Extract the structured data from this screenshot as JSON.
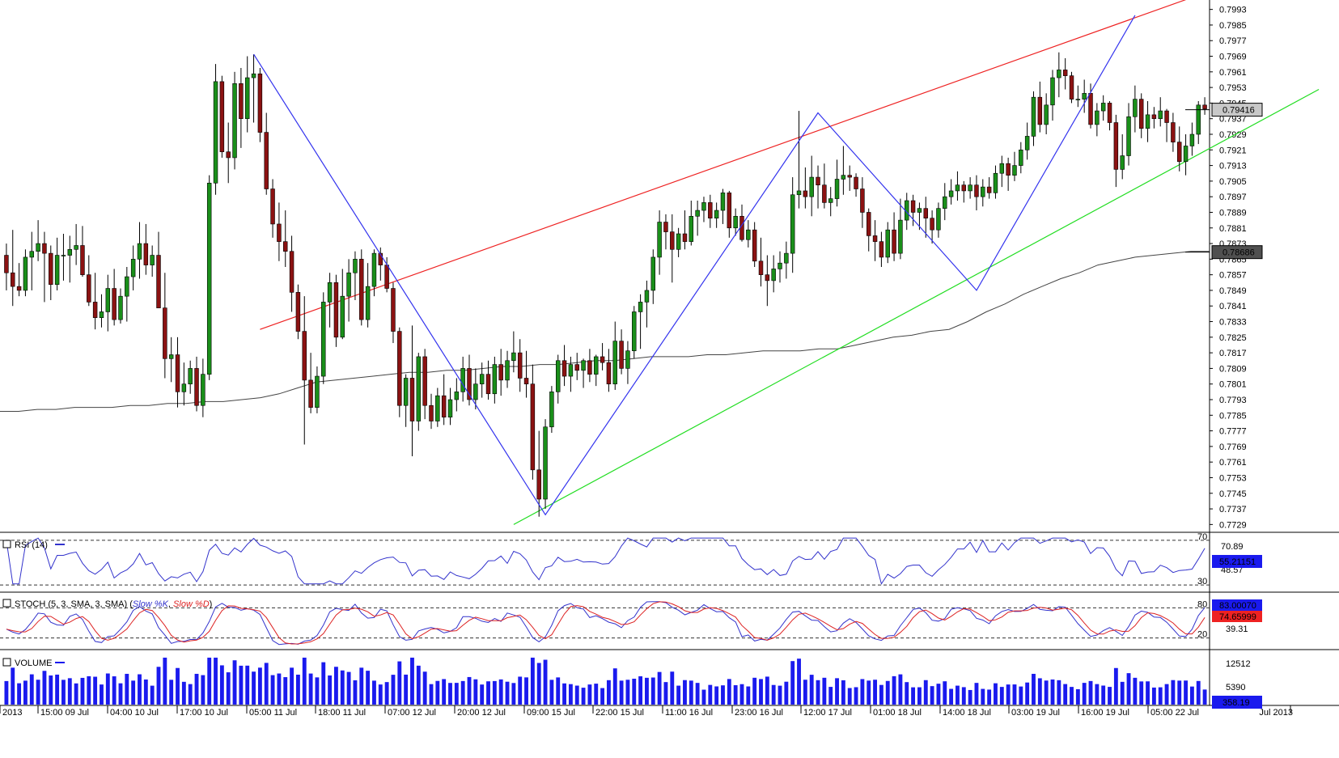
{
  "chart_data": {
    "type": "candlestick",
    "price_axis": {
      "min": 0.7725,
      "max": 0.7997,
      "ticks": [
        "0.7993",
        "0.7985",
        "0.7977",
        "0.7969",
        "0.7961",
        "0.7953",
        "0.7945",
        "0.7937",
        "0.7929",
        "0.7921",
        "0.7913",
        "0.7905",
        "0.7897",
        "0.7889",
        "0.7881",
        "0.7873",
        "0.7865",
        "0.7857",
        "0.7849",
        "0.7841",
        "0.7833",
        "0.7825",
        "0.7817",
        "0.7809",
        "0.7801",
        "0.7793",
        "0.7785",
        "0.7777",
        "0.7769",
        "0.7761",
        "0.7753",
        "0.7745",
        "0.7737",
        "0.7729"
      ],
      "last_price": "0.79416",
      "ma_value": "0.78686"
    },
    "x_labels": [
      "2013",
      "15:00 09 Jul",
      "04:00 10 Jul",
      "17:00 10 Jul",
      "05:00 11 Jul",
      "18:00 11 Jul",
      "07:00 12 Jul",
      "20:00 12 Jul",
      "09:00 15 Jul",
      "22:00 15 Jul",
      "11:00 16 Jul",
      "23:00 16 Jul",
      "12:00 17 Jul",
      "01:00 18 Jul",
      "14:00 18 Jul",
      "03:00 19 Jul",
      "16:00 19 Jul",
      "05:00 22 Jul",
      "Jul 2013"
    ],
    "rsi": {
      "label": "RSI (14)",
      "levels": [
        "70",
        "30"
      ],
      "tick_values": [
        "70.89",
        "48.57"
      ],
      "current": "55.21151"
    },
    "stoch": {
      "label_prefix": "STOCH (5, 3, SMA, 3, SMA)",
      "k_label": "Slow %K",
      "d_label": "Slow %D",
      "levels": [
        "80",
        "20"
      ],
      "tick_values": [
        "39.31"
      ],
      "current_k": "83.00070",
      "current_d": "74.65999"
    },
    "volume": {
      "label": "VOLUME",
      "tick_values": [
        "12512",
        "5390"
      ],
      "current": "358.19"
    },
    "colors": {
      "bull": "#1a8f1a",
      "bear": "#8b1212",
      "ma": "#444444",
      "pattern": "#3333ee",
      "channel_upper": "#ee2222",
      "channel_lower": "#22dd22",
      "rsi": "#3333cc",
      "stoch_k": "#3333cc",
      "stoch_d": "#dd2222",
      "volume": "#1a1aee"
    },
    "ohlc": [
      [
        0.7867,
        0.7873,
        0.7849,
        0.7858
      ],
      [
        0.7858,
        0.788,
        0.7841,
        0.7851
      ],
      [
        0.7851,
        0.7863,
        0.7846,
        0.7849
      ],
      [
        0.7849,
        0.787,
        0.7846,
        0.7866
      ],
      [
        0.7866,
        0.7879,
        0.7849,
        0.7869
      ],
      [
        0.7869,
        0.7885,
        0.7864,
        0.7873
      ],
      [
        0.7873,
        0.7879,
        0.7843,
        0.7868
      ],
      [
        0.7868,
        0.7872,
        0.7844,
        0.7852
      ],
      [
        0.7852,
        0.7876,
        0.7849,
        0.7867
      ],
      [
        0.7867,
        0.7878,
        0.7854,
        0.7867
      ],
      [
        0.7867,
        0.7877,
        0.7853,
        0.787
      ],
      [
        0.787,
        0.7883,
        0.7862,
        0.7872
      ],
      [
        0.7872,
        0.7882,
        0.7856,
        0.7857
      ],
      [
        0.7857,
        0.7867,
        0.7841,
        0.7843
      ],
      [
        0.7843,
        0.7858,
        0.7829,
        0.7835
      ],
      [
        0.7835,
        0.7847,
        0.783,
        0.7838
      ],
      [
        0.7838,
        0.7857,
        0.7828,
        0.785
      ],
      [
        0.785,
        0.786,
        0.7831,
        0.7834
      ],
      [
        0.7834,
        0.785,
        0.7832,
        0.7846
      ],
      [
        0.7846,
        0.7861,
        0.7833,
        0.7856
      ],
      [
        0.7856,
        0.7872,
        0.7849,
        0.7865
      ],
      [
        0.7865,
        0.7884,
        0.7855,
        0.7873
      ],
      [
        0.7873,
        0.7883,
        0.7857,
        0.7862
      ],
      [
        0.7862,
        0.7872,
        0.7856,
        0.7867
      ],
      [
        0.7867,
        0.7879,
        0.7841,
        0.784
      ],
      [
        0.784,
        0.7858,
        0.7804,
        0.7814
      ],
      [
        0.7814,
        0.7825,
        0.7802,
        0.7816
      ],
      [
        0.7816,
        0.7825,
        0.7789,
        0.7797
      ],
      [
        0.7797,
        0.7812,
        0.779,
        0.7801
      ],
      [
        0.7801,
        0.7813,
        0.7796,
        0.7809
      ],
      [
        0.7809,
        0.7815,
        0.7787,
        0.779
      ],
      [
        0.779,
        0.7814,
        0.7784,
        0.7806
      ],
      [
        0.7806,
        0.7908,
        0.7803,
        0.7904
      ],
      [
        0.7904,
        0.7965,
        0.7898,
        0.7956
      ],
      [
        0.7956,
        0.7959,
        0.7917,
        0.792
      ],
      [
        0.792,
        0.7935,
        0.7904,
        0.7917
      ],
      [
        0.7917,
        0.7961,
        0.7911,
        0.7955
      ],
      [
        0.7955,
        0.7963,
        0.7922,
        0.7937
      ],
      [
        0.7937,
        0.7969,
        0.793,
        0.7958
      ],
      [
        0.7958,
        0.797,
        0.7935,
        0.796
      ],
      [
        0.796,
        0.7963,
        0.7925,
        0.793
      ],
      [
        0.793,
        0.794,
        0.7898,
        0.7901
      ],
      [
        0.7901,
        0.7906,
        0.7876,
        0.7883
      ],
      [
        0.7883,
        0.7894,
        0.7864,
        0.7874
      ],
      [
        0.7874,
        0.789,
        0.7861,
        0.7869
      ],
      [
        0.7869,
        0.7877,
        0.7838,
        0.7848
      ],
      [
        0.7848,
        0.7852,
        0.7824,
        0.7828
      ],
      [
        0.7828,
        0.7846,
        0.777,
        0.7803
      ],
      [
        0.7803,
        0.7817,
        0.7786,
        0.7789
      ],
      [
        0.7789,
        0.781,
        0.7786,
        0.7805
      ],
      [
        0.7805,
        0.7848,
        0.7801,
        0.7843
      ],
      [
        0.7843,
        0.7858,
        0.783,
        0.7853
      ],
      [
        0.7853,
        0.7857,
        0.782,
        0.7825
      ],
      [
        0.7825,
        0.786,
        0.7824,
        0.7846
      ],
      [
        0.7846,
        0.7865,
        0.7833,
        0.7858
      ],
      [
        0.7858,
        0.7869,
        0.7844,
        0.7865
      ],
      [
        0.7865,
        0.787,
        0.7831,
        0.7834
      ],
      [
        0.7834,
        0.7863,
        0.783,
        0.7851
      ],
      [
        0.7851,
        0.787,
        0.7846,
        0.7868
      ],
      [
        0.7868,
        0.7871,
        0.7854,
        0.7862
      ],
      [
        0.7862,
        0.7866,
        0.7848,
        0.785
      ],
      [
        0.785,
        0.7853,
        0.7822,
        0.7828
      ],
      [
        0.7828,
        0.783,
        0.7784,
        0.779
      ],
      [
        0.779,
        0.7806,
        0.7779,
        0.7804
      ],
      [
        0.7804,
        0.7831,
        0.7764,
        0.7782
      ],
      [
        0.7782,
        0.7817,
        0.7777,
        0.7815
      ],
      [
        0.7815,
        0.7819,
        0.7783,
        0.779
      ],
      [
        0.779,
        0.7796,
        0.7778,
        0.7782
      ],
      [
        0.7782,
        0.7799,
        0.7779,
        0.7795
      ],
      [
        0.7795,
        0.7806,
        0.778,
        0.7784
      ],
      [
        0.7784,
        0.7799,
        0.778,
        0.7793
      ],
      [
        0.7793,
        0.7804,
        0.7787,
        0.7797
      ],
      [
        0.7797,
        0.7815,
        0.7792,
        0.7809
      ],
      [
        0.7809,
        0.7816,
        0.779,
        0.7793
      ],
      [
        0.7793,
        0.7809,
        0.7788,
        0.7801
      ],
      [
        0.7801,
        0.7812,
        0.7794,
        0.7806
      ],
      [
        0.7806,
        0.7813,
        0.7793,
        0.7796
      ],
      [
        0.7796,
        0.7815,
        0.7791,
        0.7811
      ],
      [
        0.7811,
        0.7819,
        0.7795,
        0.7803
      ],
      [
        0.7803,
        0.7818,
        0.7799,
        0.7813
      ],
      [
        0.7813,
        0.7828,
        0.7807,
        0.7817
      ],
      [
        0.7817,
        0.7824,
        0.7797,
        0.7804
      ],
      [
        0.7804,
        0.7818,
        0.7794,
        0.7801
      ],
      [
        0.7801,
        0.7811,
        0.7752,
        0.7757
      ],
      [
        0.7757,
        0.7777,
        0.7733,
        0.7742
      ],
      [
        0.7742,
        0.7783,
        0.7737,
        0.7779
      ],
      [
        0.7779,
        0.78,
        0.7776,
        0.7797
      ],
      [
        0.7797,
        0.7816,
        0.7791,
        0.7813
      ],
      [
        0.7813,
        0.7821,
        0.78,
        0.7805
      ],
      [
        0.7805,
        0.7815,
        0.7797,
        0.7811
      ],
      [
        0.7811,
        0.7817,
        0.7803,
        0.7808
      ],
      [
        0.7808,
        0.7814,
        0.7799,
        0.7813
      ],
      [
        0.7813,
        0.7819,
        0.7802,
        0.7806
      ],
      [
        0.7806,
        0.7816,
        0.78,
        0.7815
      ],
      [
        0.7815,
        0.7822,
        0.7808,
        0.7812
      ],
      [
        0.7812,
        0.7819,
        0.7797,
        0.7801
      ],
      [
        0.7801,
        0.7833,
        0.7798,
        0.7823
      ],
      [
        0.7823,
        0.7829,
        0.7806,
        0.7809
      ],
      [
        0.7809,
        0.7823,
        0.7801,
        0.7818
      ],
      [
        0.7818,
        0.7841,
        0.7814,
        0.7838
      ],
      [
        0.7838,
        0.7847,
        0.7819,
        0.7843
      ],
      [
        0.7843,
        0.7854,
        0.783,
        0.7849
      ],
      [
        0.7849,
        0.787,
        0.7842,
        0.7866
      ],
      [
        0.7866,
        0.789,
        0.7857,
        0.7884
      ],
      [
        0.7884,
        0.7888,
        0.787,
        0.7879
      ],
      [
        0.7879,
        0.7888,
        0.7853,
        0.787
      ],
      [
        0.787,
        0.7881,
        0.7866,
        0.7878
      ],
      [
        0.7878,
        0.789,
        0.787,
        0.7874
      ],
      [
        0.7874,
        0.7895,
        0.7872,
        0.7887
      ],
      [
        0.7887,
        0.7895,
        0.7877,
        0.789
      ],
      [
        0.789,
        0.7897,
        0.7884,
        0.7894
      ],
      [
        0.7894,
        0.7898,
        0.7881,
        0.7886
      ],
      [
        0.7886,
        0.7894,
        0.7881,
        0.789
      ],
      [
        0.789,
        0.7901,
        0.7883,
        0.7899
      ],
      [
        0.7899,
        0.79,
        0.7876,
        0.7881
      ],
      [
        0.7881,
        0.7891,
        0.7877,
        0.7887
      ],
      [
        0.7887,
        0.7893,
        0.7874,
        0.7875
      ],
      [
        0.7875,
        0.7885,
        0.7871,
        0.788
      ],
      [
        0.788,
        0.7884,
        0.7861,
        0.7864
      ],
      [
        0.7864,
        0.7876,
        0.7851,
        0.7857
      ],
      [
        0.7857,
        0.7867,
        0.7841,
        0.7854
      ],
      [
        0.7854,
        0.7867,
        0.7848,
        0.786
      ],
      [
        0.786,
        0.7869,
        0.7853,
        0.7863
      ],
      [
        0.7863,
        0.7874,
        0.7855,
        0.7868
      ],
      [
        0.7868,
        0.7907,
        0.7858,
        0.7898
      ],
      [
        0.7898,
        0.7941,
        0.7891,
        0.79
      ],
      [
        0.79,
        0.7912,
        0.7891,
        0.7897
      ],
      [
        0.7897,
        0.7918,
        0.7887,
        0.7907
      ],
      [
        0.7907,
        0.7913,
        0.7891,
        0.7903
      ],
      [
        0.7903,
        0.7914,
        0.7891,
        0.7894
      ],
      [
        0.7894,
        0.7902,
        0.7887,
        0.7896
      ],
      [
        0.7896,
        0.7916,
        0.7892,
        0.7906
      ],
      [
        0.7906,
        0.7923,
        0.7898,
        0.7908
      ],
      [
        0.7908,
        0.7913,
        0.79,
        0.7907
      ],
      [
        0.7907,
        0.7909,
        0.7897,
        0.7901
      ],
      [
        0.7901,
        0.7907,
        0.7881,
        0.7889
      ],
      [
        0.7889,
        0.7891,
        0.7869,
        0.7877
      ],
      [
        0.7877,
        0.7885,
        0.7864,
        0.7874
      ],
      [
        0.7874,
        0.7879,
        0.7861,
        0.7866
      ],
      [
        0.7866,
        0.7884,
        0.7863,
        0.788
      ],
      [
        0.788,
        0.7889,
        0.7864,
        0.7868
      ],
      [
        0.7868,
        0.7896,
        0.7865,
        0.7885
      ],
      [
        0.7885,
        0.7899,
        0.788,
        0.7895
      ],
      [
        0.7895,
        0.7898,
        0.7882,
        0.7889
      ],
      [
        0.7889,
        0.7894,
        0.788,
        0.7891
      ],
      [
        0.7891,
        0.7897,
        0.7876,
        0.7886
      ],
      [
        0.7886,
        0.789,
        0.7873,
        0.788
      ],
      [
        0.788,
        0.7894,
        0.7876,
        0.7891
      ],
      [
        0.7891,
        0.7904,
        0.7885,
        0.7897
      ],
      [
        0.7897,
        0.7906,
        0.7893,
        0.79
      ],
      [
        0.79,
        0.791,
        0.7895,
        0.7903
      ],
      [
        0.7903,
        0.7905,
        0.7894,
        0.79
      ],
      [
        0.79,
        0.7907,
        0.7896,
        0.7903
      ],
      [
        0.7903,
        0.7908,
        0.789,
        0.7897
      ],
      [
        0.7897,
        0.7906,
        0.7892,
        0.7902
      ],
      [
        0.7902,
        0.7907,
        0.7896,
        0.7899
      ],
      [
        0.7899,
        0.7913,
        0.7896,
        0.7909
      ],
      [
        0.7909,
        0.7918,
        0.7902,
        0.7914
      ],
      [
        0.7914,
        0.7917,
        0.79,
        0.7908
      ],
      [
        0.7908,
        0.792,
        0.7905,
        0.7913
      ],
      [
        0.7913,
        0.7925,
        0.7909,
        0.7921
      ],
      [
        0.7921,
        0.7935,
        0.7916,
        0.7928
      ],
      [
        0.7928,
        0.7951,
        0.7923,
        0.7948
      ],
      [
        0.7948,
        0.7956,
        0.793,
        0.7934
      ],
      [
        0.7934,
        0.795,
        0.7929,
        0.7944
      ],
      [
        0.7944,
        0.7962,
        0.7936,
        0.7958
      ],
      [
        0.7958,
        0.7971,
        0.7948,
        0.7962
      ],
      [
        0.7962,
        0.7968,
        0.7952,
        0.7959
      ],
      [
        0.7959,
        0.7961,
        0.7945,
        0.7947
      ],
      [
        0.7947,
        0.7954,
        0.7943,
        0.7947
      ],
      [
        0.7947,
        0.7957,
        0.794,
        0.795
      ],
      [
        0.795,
        0.7955,
        0.7932,
        0.7934
      ],
      [
        0.7934,
        0.7945,
        0.7928,
        0.7941
      ],
      [
        0.7941,
        0.7949,
        0.7936,
        0.7945
      ],
      [
        0.7945,
        0.7946,
        0.7931,
        0.7935
      ],
      [
        0.7935,
        0.7939,
        0.7902,
        0.7911
      ],
      [
        0.7911,
        0.7929,
        0.7906,
        0.7918
      ],
      [
        0.7918,
        0.7945,
        0.7913,
        0.7938
      ],
      [
        0.7938,
        0.7954,
        0.793,
        0.7947
      ],
      [
        0.7947,
        0.795,
        0.7927,
        0.7932
      ],
      [
        0.7932,
        0.7946,
        0.7925,
        0.7939
      ],
      [
        0.7939,
        0.7943,
        0.7932,
        0.7937
      ],
      [
        0.7937,
        0.7948,
        0.7933,
        0.7941
      ],
      [
        0.7941,
        0.7942,
        0.7925,
        0.7935
      ],
      [
        0.7935,
        0.794,
        0.792,
        0.7925
      ],
      [
        0.7925,
        0.7933,
        0.791,
        0.7915
      ],
      [
        0.7915,
        0.7929,
        0.7908,
        0.7923
      ],
      [
        0.7923,
        0.7935,
        0.7918,
        0.7929
      ],
      [
        0.7929,
        0.7946,
        0.7924,
        0.7944
      ],
      [
        0.7944,
        0.7948,
        0.7939,
        0.7942
      ]
    ],
    "ma200": [
      0.7787,
      0.7787,
      0.7788,
      0.7788,
      0.7789,
      0.7789,
      0.7789,
      0.779,
      0.779,
      0.7791,
      0.7791,
      0.7792,
      0.7792,
      0.7793,
      0.7794,
      0.7796,
      0.7799,
      0.7802,
      0.7803,
      0.7804,
      0.7805,
      0.7806,
      0.7807,
      0.7807,
      0.7808,
      0.7808,
      0.7809,
      0.781,
      0.781,
      0.7811,
      0.7811,
      0.7812,
      0.7813,
      0.7813,
      0.7814,
      0.7815,
      0.7815,
      0.7815,
      0.7816,
      0.7816,
      0.7817,
      0.7818,
      0.7818,
      0.7818,
      0.7819,
      0.7819,
      0.7821,
      0.7823,
      0.7825,
      0.7826,
      0.7828,
      0.7829,
      0.7833,
      0.7838,
      0.7842,
      0.7847,
      0.7851,
      0.7855,
      0.7858,
      0.7862,
      0.7864,
      0.7866,
      0.7867,
      0.7868,
      0.7869,
      0.7869
    ],
    "patterns": {
      "zigzag": [
        [
          0.797,
          39
        ],
        [
          0.7734,
          85
        ],
        [
          0.794,
          128
        ],
        [
          0.7849,
          153
        ],
        [
          0.799,
          178
        ]
      ],
      "red_channel": [
        [
          0.7829,
          40
        ],
        [
          0.7998,
          186
        ]
      ],
      "green_channel": [
        [
          0.7729,
          80
        ],
        [
          0.7952,
          207
        ]
      ]
    }
  }
}
